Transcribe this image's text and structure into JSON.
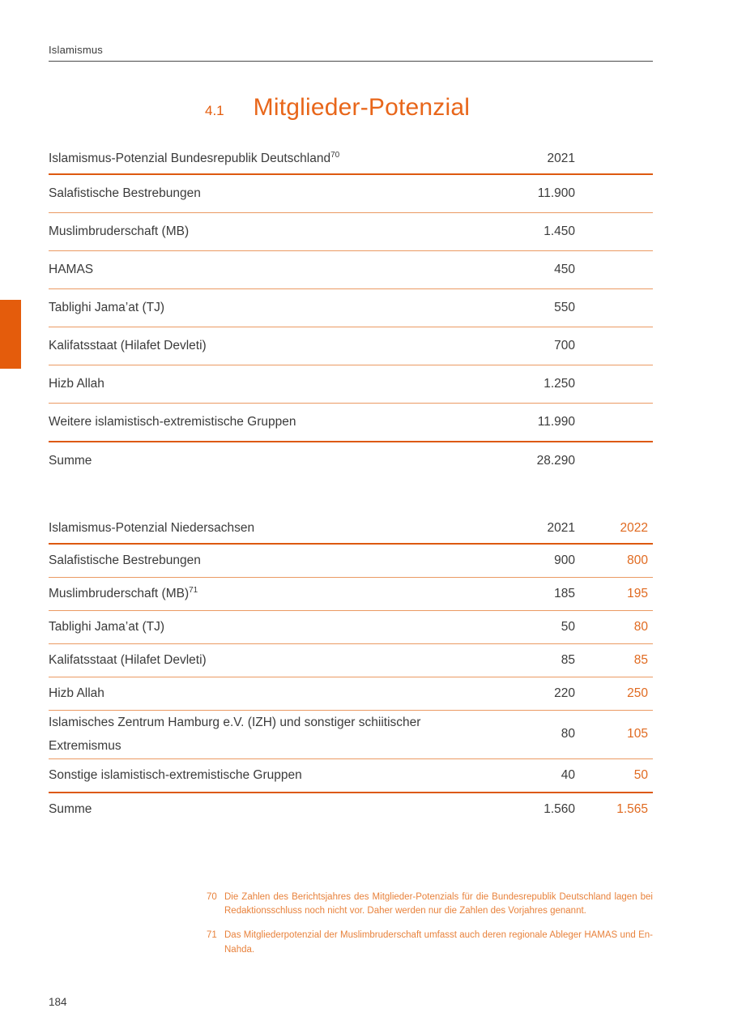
{
  "page": {
    "running_header": "Islamismus",
    "page_number": "184"
  },
  "section": {
    "number": "4.1",
    "title": "Mitglieder-Potenzial"
  },
  "colors": {
    "accent_orange": "#e45c0c",
    "light_rule_orange": "#eb9a63",
    "footnote_orange": "#e8823c",
    "text_dark": "#3b3b3b"
  },
  "table_germany": {
    "header": {
      "label": "Islamismus-Potenzial Bundesrepublik Deutschland",
      "footnote_ref": "70",
      "col_2021": "2021"
    },
    "rows": [
      {
        "label": "Salafistische Bestrebungen",
        "v2021": "11.900"
      },
      {
        "label": "Muslimbruderschaft (MB)",
        "v2021": "1.450"
      },
      {
        "label": "HAMAS",
        "v2021": "450"
      },
      {
        "label": "Tablighi Jama’at (TJ)",
        "v2021": "550"
      },
      {
        "label": "Kalifatsstaat (Hilafet Devleti)",
        "v2021": "700"
      },
      {
        "label": "Hizb Allah",
        "v2021": "1.250"
      },
      {
        "label": "Weitere islamistisch-extremistische Gruppen",
        "v2021": "11.990"
      }
    ],
    "total": {
      "label": "Summe",
      "v2021": "28.290"
    }
  },
  "table_niedersachsen": {
    "header": {
      "label": "Islamismus-Potenzial Niedersachsen",
      "col_2021": "2021",
      "col_2022": "2022"
    },
    "rows": [
      {
        "label": "Salafistische Bestrebungen",
        "v2021": "900",
        "v2022": "800"
      },
      {
        "label": "Muslimbruderschaft (MB)",
        "footnote_ref": "71",
        "v2021": "185",
        "v2022": "195"
      },
      {
        "label": "Tablighi Jama’at (TJ)",
        "v2021": "50",
        "v2022": "80"
      },
      {
        "label": "Kalifatsstaat (Hilafet Devleti)",
        "v2021": "85",
        "v2022": "85"
      },
      {
        "label": "Hizb Allah",
        "v2021": "220",
        "v2022": "250"
      },
      {
        "label": "Islamisches Zentrum Hamburg e.V. (IZH) und sonstiger schiitischer Extremismus",
        "v2021": "80",
        "v2022": "105"
      },
      {
        "label": "Sonstige islamistisch-extremistische Gruppen",
        "v2021": "40",
        "v2022": "50"
      }
    ],
    "total": {
      "label": "Summe",
      "v2021": "1.560",
      "v2022": "1.565"
    }
  },
  "footnotes": [
    {
      "number": "70",
      "text": "Die Zahlen des Berichtsjahres des Mitglieder-Potenzials für die Bundesrepublik Deutschland lagen bei Redaktionsschluss noch nicht vor. Daher werden nur die Zahlen des Vorjahres genannt."
    },
    {
      "number": "71",
      "text": "Das Mitgliederpotenzial der Muslimbruderschaft umfasst auch deren regionale Ableger HAMAS und En-Nahda."
    }
  ]
}
